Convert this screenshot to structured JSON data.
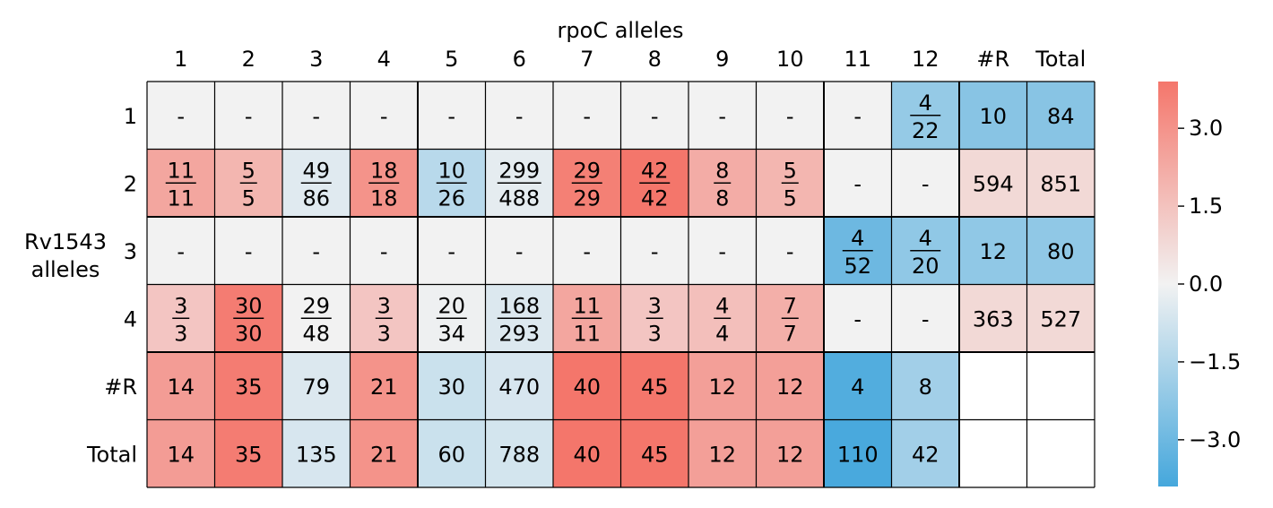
{
  "chart_data": {
    "type": "heatmap",
    "title": "",
    "xlabel": "rpoC alleles",
    "ylabel": "Rv1543\nalleles",
    "col_labels": [
      "1",
      "2",
      "3",
      "4",
      "5",
      "6",
      "7",
      "8",
      "9",
      "10",
      "11",
      "12",
      "#R",
      "Total"
    ],
    "row_labels": [
      "1",
      "2",
      "3",
      "4",
      "#R",
      "Total"
    ],
    "colorbar": {
      "ticks": [
        "3.0",
        "1.5",
        "0.0",
        "−1.5",
        "−3.0"
      ],
      "tick_values": [
        3.0,
        1.5,
        0.0,
        -1.5,
        -3.0
      ],
      "vmin": -3.9,
      "vmax": 3.9,
      "neg_color": "#45a7dc",
      "mid_color": "#f2f2f2",
      "pos_color": "#f4766b"
    },
    "nan_color": "#f2f2f2",
    "empty_color": "#ffffff",
    "rows": [
      [
        {
          "text": "-",
          "v": null
        },
        {
          "text": "-",
          "v": null
        },
        {
          "text": "-",
          "v": null
        },
        {
          "text": "-",
          "v": null
        },
        {
          "text": "-",
          "v": null
        },
        {
          "text": "-",
          "v": null
        },
        {
          "text": "-",
          "v": null
        },
        {
          "text": "-",
          "v": null
        },
        {
          "text": "-",
          "v": null
        },
        {
          "text": "-",
          "v": null
        },
        {
          "text": "-",
          "v": null
        },
        {
          "num": "4",
          "den": "22",
          "v": -2.1
        },
        {
          "text": "10",
          "v": -2.4
        },
        {
          "text": "84",
          "v": -2.4
        }
      ],
      [
        {
          "num": "11",
          "den": "11",
          "v": 2.4
        },
        {
          "num": "5",
          "den": "5",
          "v": 1.9
        },
        {
          "num": "49",
          "den": "86",
          "v": -0.4
        },
        {
          "num": "18",
          "den": "18",
          "v": 3.0
        },
        {
          "num": "10",
          "den": "26",
          "v": -1.3
        },
        {
          "num": "299",
          "den": "488",
          "v": -0.3
        },
        {
          "num": "29",
          "den": "29",
          "v": 3.6
        },
        {
          "num": "42",
          "den": "42",
          "v": 3.9
        },
        {
          "num": "8",
          "den": "8",
          "v": 2.2
        },
        {
          "num": "5",
          "den": "5",
          "v": 1.9
        },
        {
          "text": "-",
          "v": null
        },
        {
          "text": "-",
          "v": null
        },
        {
          "text": "594",
          "v": 0.8
        },
        {
          "text": "851",
          "v": 0.8
        }
      ],
      [
        {
          "text": "-",
          "v": null
        },
        {
          "text": "-",
          "v": null
        },
        {
          "text": "-",
          "v": null
        },
        {
          "text": "-",
          "v": null
        },
        {
          "text": "-",
          "v": null
        },
        {
          "text": "-",
          "v": null
        },
        {
          "text": "-",
          "v": null
        },
        {
          "text": "-",
          "v": null
        },
        {
          "text": "-",
          "v": null
        },
        {
          "text": "-",
          "v": null
        },
        {
          "num": "4",
          "den": "52",
          "v": -3.0
        },
        {
          "num": "4",
          "den": "20",
          "v": -2.2
        },
        {
          "text": "12",
          "v": -2.2
        },
        {
          "text": "80",
          "v": -2.2
        }
      ],
      [
        {
          "num": "3",
          "den": "3",
          "v": 1.4
        },
        {
          "num": "30",
          "den": "30",
          "v": 3.7
        },
        {
          "num": "29",
          "den": "48",
          "v": 0.0
        },
        {
          "num": "3",
          "den": "3",
          "v": 1.4
        },
        {
          "num": "20",
          "den": "34",
          "v": -0.1
        },
        {
          "num": "168",
          "den": "293",
          "v": -0.5
        },
        {
          "num": "11",
          "den": "11",
          "v": 2.4
        },
        {
          "num": "3",
          "den": "3",
          "v": 1.4
        },
        {
          "num": "4",
          "den": "4",
          "v": 1.6
        },
        {
          "num": "7",
          "den": "7",
          "v": 2.1
        },
        {
          "text": "-",
          "v": null
        },
        {
          "text": "-",
          "v": null
        },
        {
          "text": "363",
          "v": 0.8
        },
        {
          "text": "527",
          "v": 0.8
        }
      ],
      [
        {
          "text": "14",
          "v": 2.7
        },
        {
          "text": "35",
          "v": 3.7
        },
        {
          "text": "79",
          "v": -0.5
        },
        {
          "text": "21",
          "v": 3.0
        },
        {
          "text": "30",
          "v": -0.9
        },
        {
          "text": "470",
          "v": -0.6
        },
        {
          "text": "40",
          "v": 3.9
        },
        {
          "text": "45",
          "v": 3.9
        },
        {
          "text": "12",
          "v": 2.6
        },
        {
          "text": "12",
          "v": 2.6
        },
        {
          "text": "4",
          "v": -3.6
        },
        {
          "text": "8",
          "v": -1.8
        },
        {
          "text": "",
          "v": "empty"
        },
        {
          "text": "",
          "v": "empty"
        }
      ],
      [
        {
          "text": "14",
          "v": 2.7
        },
        {
          "text": "35",
          "v": 3.7
        },
        {
          "text": "135",
          "v": -0.6
        },
        {
          "text": "21",
          "v": 3.0
        },
        {
          "text": "60",
          "v": -0.9
        },
        {
          "text": "788",
          "v": -0.7
        },
        {
          "text": "40",
          "v": 3.9
        },
        {
          "text": "45",
          "v": 3.9
        },
        {
          "text": "12",
          "v": 2.6
        },
        {
          "text": "12",
          "v": 2.6
        },
        {
          "text": "110",
          "v": -3.8
        },
        {
          "text": "42",
          "v": -1.8
        },
        {
          "text": "",
          "v": "empty"
        },
        {
          "text": "",
          "v": "empty"
        }
      ]
    ]
  }
}
